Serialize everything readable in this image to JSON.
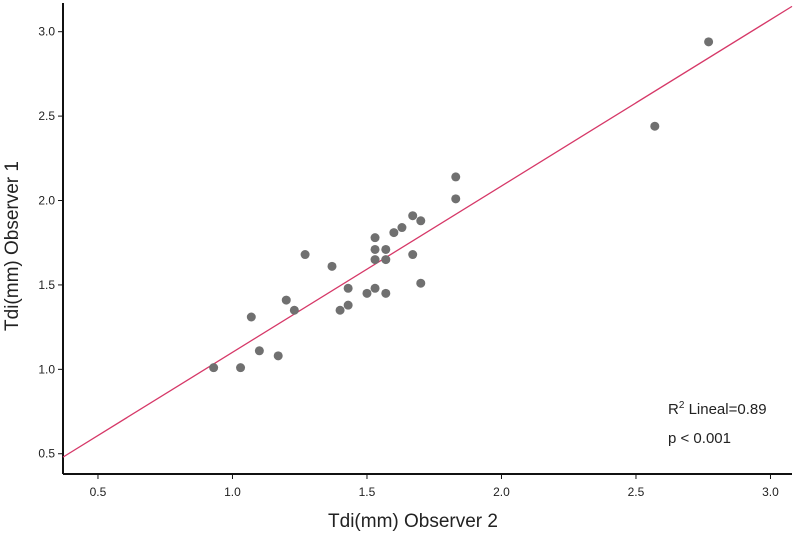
{
  "chart_data": {
    "type": "scatter",
    "title": "",
    "xlabel": "Tdi(mm) Observer 2",
    "ylabel": "Tdi(mm) Observer 1",
    "xlim": [
      0.37,
      3.08
    ],
    "ylim": [
      0.38,
      3.17
    ],
    "xticks": [
      "0.5",
      "1.0",
      "1.5",
      "2.0",
      "2.5",
      "3.0"
    ],
    "yticks": [
      "0.5",
      "1.0",
      "1.5",
      "2.0",
      "2.5",
      "3.0"
    ],
    "grid": false,
    "points": [
      {
        "x": 0.93,
        "y": 1.01
      },
      {
        "x": 1.03,
        "y": 1.01
      },
      {
        "x": 1.07,
        "y": 1.31
      },
      {
        "x": 1.1,
        "y": 1.11
      },
      {
        "x": 1.17,
        "y": 1.08
      },
      {
        "x": 1.2,
        "y": 1.41
      },
      {
        "x": 1.23,
        "y": 1.35
      },
      {
        "x": 1.27,
        "y": 1.68
      },
      {
        "x": 1.37,
        "y": 1.61
      },
      {
        "x": 1.4,
        "y": 1.35
      },
      {
        "x": 1.43,
        "y": 1.48
      },
      {
        "x": 1.43,
        "y": 1.38
      },
      {
        "x": 1.5,
        "y": 1.45
      },
      {
        "x": 1.53,
        "y": 1.78
      },
      {
        "x": 1.53,
        "y": 1.71
      },
      {
        "x": 1.53,
        "y": 1.65
      },
      {
        "x": 1.53,
        "y": 1.48
      },
      {
        "x": 1.57,
        "y": 1.71
      },
      {
        "x": 1.57,
        "y": 1.65
      },
      {
        "x": 1.57,
        "y": 1.45
      },
      {
        "x": 1.6,
        "y": 1.81
      },
      {
        "x": 1.63,
        "y": 1.84
      },
      {
        "x": 1.67,
        "y": 1.91
      },
      {
        "x": 1.67,
        "y": 1.68
      },
      {
        "x": 1.7,
        "y": 1.88
      },
      {
        "x": 1.7,
        "y": 1.51
      },
      {
        "x": 1.83,
        "y": 2.14
      },
      {
        "x": 1.83,
        "y": 2.01
      },
      {
        "x": 2.57,
        "y": 2.44
      },
      {
        "x": 2.77,
        "y": 2.94
      }
    ],
    "fit_line": {
      "x1": 0.37,
      "y1": 0.48,
      "x2": 3.08,
      "y2": 3.15,
      "color": "#d63868"
    },
    "point_color": "#707070",
    "annotations": {
      "r2_symbol": "R",
      "r2_superscript": "2",
      "r2_text": " Lineal=0.89",
      "p_text": "p < 0.001"
    }
  }
}
